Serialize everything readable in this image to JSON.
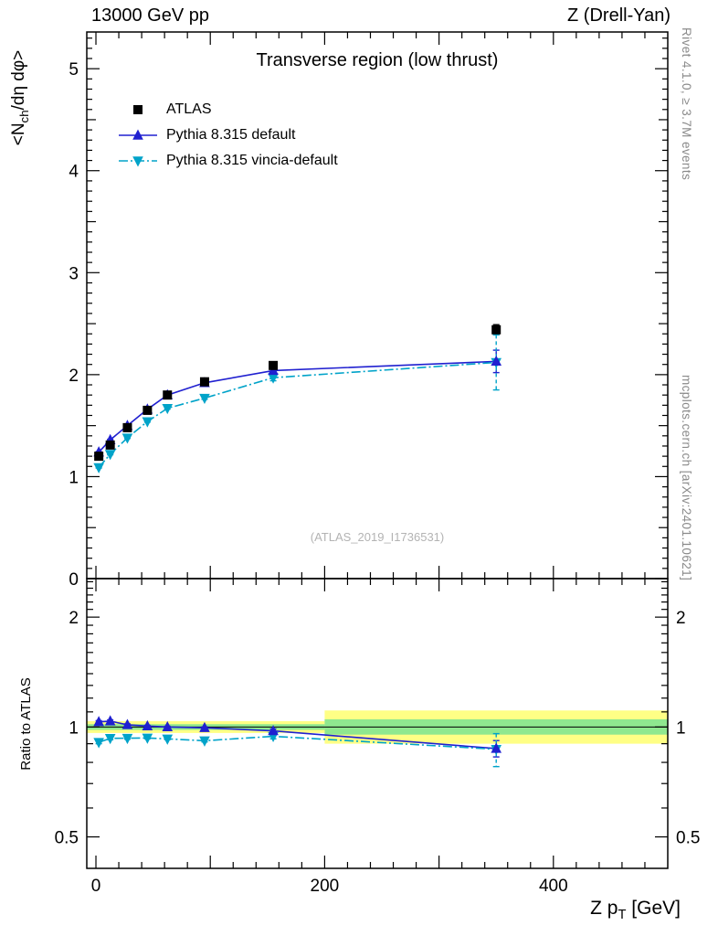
{
  "header": {
    "left": "13000 GeV pp",
    "right": "Z (Drell-Yan)"
  },
  "side_texts": {
    "top": "Rivet 4.1.0, ≥ 3.7M events",
    "bottom": "mcplots.cern.ch [arXiv:2401.10621]"
  },
  "watermark": "(ATLAS_2019_I1736531)",
  "axes": {
    "ylabel": {
      "pre": "<N",
      "sub": "ch",
      "post": "/dη dφ>"
    },
    "ratio_ylabel": "Ratio to ATLAS",
    "xlabel": {
      "pre": "Z p",
      "sub": "T",
      "post": " [GeV]"
    }
  },
  "chart_data": {
    "type": "line",
    "title": "Transverse region (low thrust)",
    "xlabel": "Z pT [GeV]",
    "ylabel": "<N_ch/dη dφ>",
    "legend_position": "top-left",
    "grid": false,
    "xlim": [
      -8,
      500
    ],
    "xticks_minor_step": 20,
    "xticks_major_step": 100,
    "xtick_labels": [
      0,
      200,
      400
    ],
    "x": [
      2.5,
      12.5,
      27.5,
      45,
      62.5,
      95,
      155,
      350
    ],
    "panels": [
      {
        "name": "main",
        "yscale": "linear",
        "ylim": [
          0,
          5.36
        ],
        "yticks": [
          0,
          1,
          2,
          3,
          4,
          5
        ],
        "series": [
          {
            "name": "ATLAS",
            "marker": "square",
            "color": "#000000",
            "line": "none",
            "values": [
              1.2,
              1.31,
              1.48,
              1.65,
              1.8,
              1.93,
              2.09,
              2.44
            ],
            "errors": [
              0.02,
              0.02,
              0.02,
              0.02,
              0.02,
              0.025,
              0.03,
              0.05
            ]
          },
          {
            "name": "Pythia 8.315 default",
            "marker": "triangle-up",
            "color": "#2020d0",
            "line": "solid",
            "values": [
              1.24,
              1.36,
              1.5,
              1.66,
              1.8,
              1.92,
              2.04,
              2.13
            ],
            "errors": [
              0.006,
              0.006,
              0.006,
              0.006,
              0.008,
              0.01,
              0.02,
              0.11
            ]
          },
          {
            "name": "Pythia 8.315 vincia-default",
            "marker": "triangle-down",
            "color": "#00a3c9",
            "line": "dashdot",
            "values": [
              1.09,
              1.22,
              1.38,
              1.54,
              1.67,
              1.77,
              1.97,
              2.12
            ],
            "errors": [
              0.006,
              0.006,
              0.006,
              0.006,
              0.008,
              0.012,
              0.03,
              0.27
            ]
          }
        ]
      },
      {
        "name": "ratio",
        "yscale": "log",
        "ylim": [
          0.41,
          2.55
        ],
        "yticks": [
          0.5,
          1,
          2
        ],
        "yticks_minor": [
          0.6,
          0.7,
          0.8,
          0.9,
          1.1,
          1.2,
          1.3,
          1.4,
          1.5,
          1.6,
          1.7,
          1.8,
          1.9,
          2.1,
          2.2,
          2.3,
          2.4,
          2.5
        ],
        "reference": 1,
        "band_colors": {
          "total": "#ffff85",
          "stat": "#8fe88f"
        },
        "bands": [
          {
            "x0": -8,
            "x1": 200,
            "lo": 0.963,
            "hi": 1.038,
            "color": "#ffff85"
          },
          {
            "x0": 200,
            "x1": 500,
            "lo": 0.9,
            "hi": 1.11,
            "color": "#ffff85"
          },
          {
            "x0": -8,
            "x1": 200,
            "lo": 0.982,
            "hi": 1.018,
            "color": "#8fe88f"
          },
          {
            "x0": 200,
            "x1": 500,
            "lo": 0.953,
            "hi": 1.05,
            "color": "#8fe88f"
          }
        ],
        "series": [
          {
            "name": "Pythia 8.315 default / ATLAS",
            "marker": "triangle-up",
            "color": "#2020d0",
            "line": "solid",
            "values": [
              1.033,
              1.038,
              1.014,
              1.006,
              1.0,
              0.995,
              0.976,
              0.873
            ],
            "errors": [
              0.008,
              0.008,
              0.006,
              0.005,
              0.005,
              0.006,
              0.012,
              0.045
            ]
          },
          {
            "name": "Pythia 8.315 vincia-default / ATLAS",
            "marker": "triangle-down",
            "color": "#00a3c9",
            "line": "dashdot",
            "values": [
              0.908,
              0.931,
              0.932,
              0.933,
              0.928,
              0.917,
              0.943,
              0.869
            ],
            "errors": [
              0.008,
              0.008,
              0.006,
              0.005,
              0.005,
              0.007,
              0.015,
              0.09
            ]
          }
        ]
      }
    ]
  }
}
